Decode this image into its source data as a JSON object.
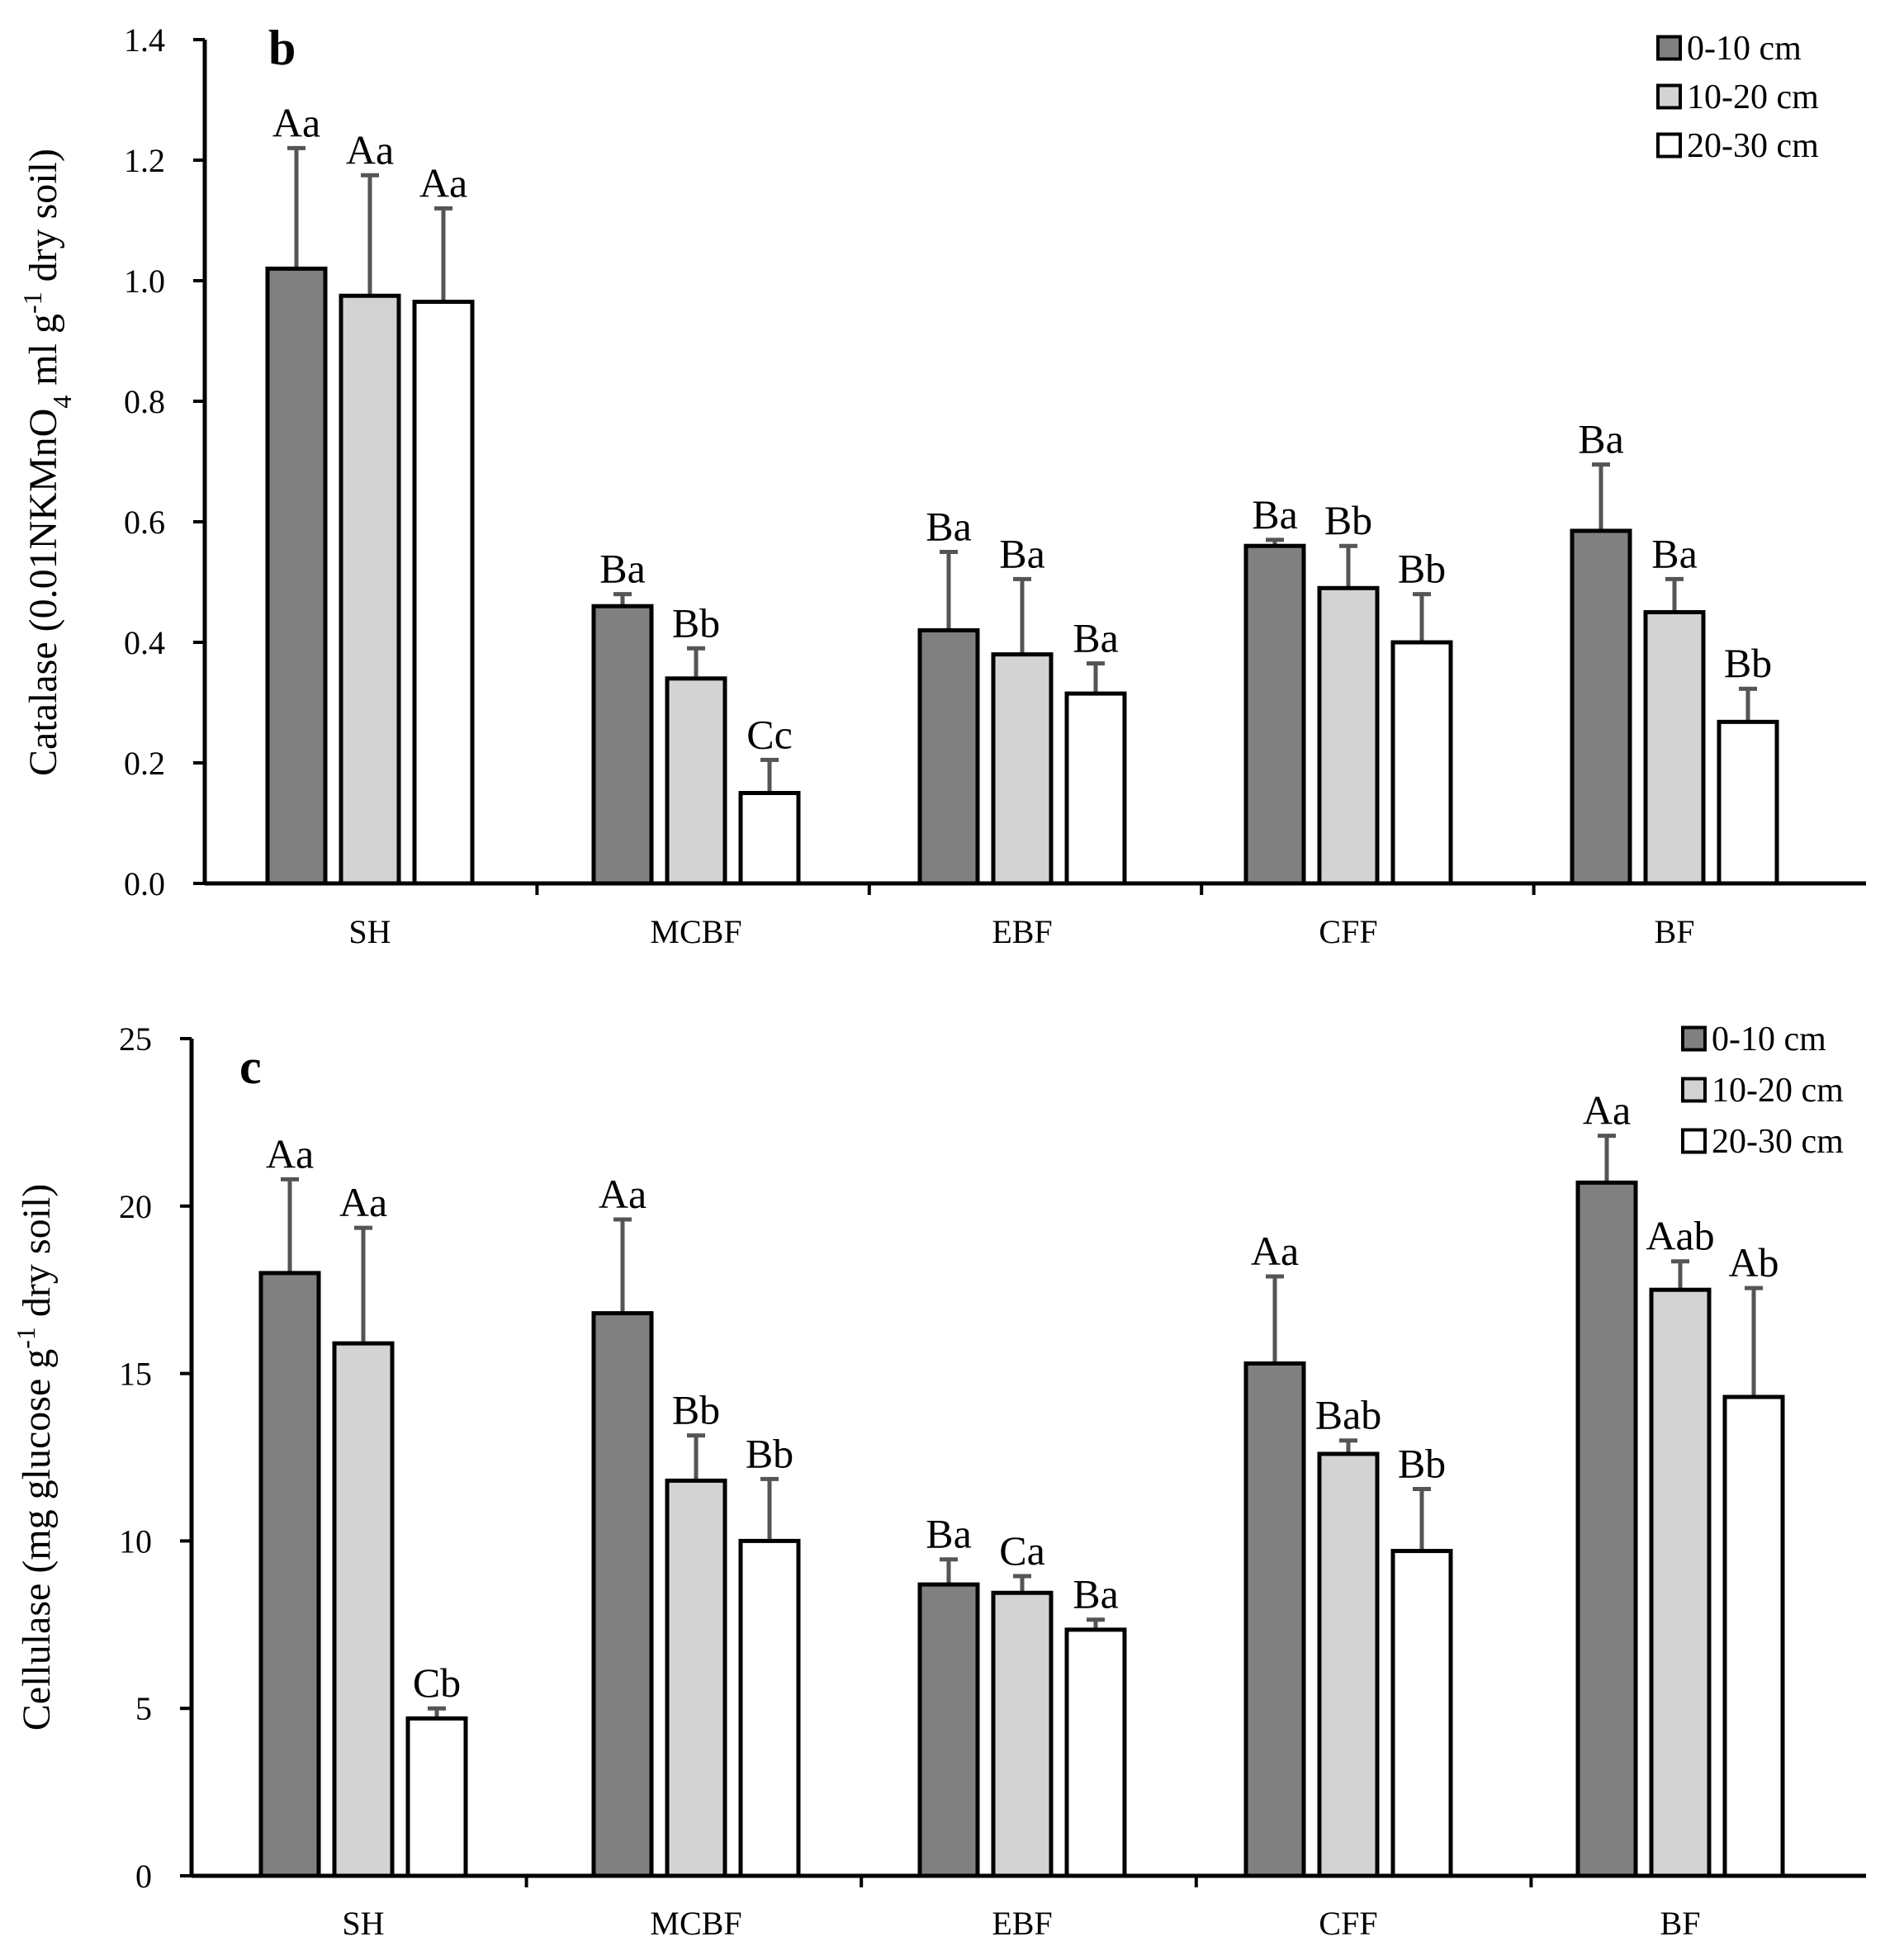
{
  "legend": [
    "0-10 cm",
    "10-20 cm",
    "20-30 cm"
  ],
  "colors": {
    "depth_0_10": "#808080",
    "depth_10_20": "#d3d3d3",
    "depth_20_30": "#ffffff"
  },
  "chart_data": [
    {
      "type": "bar",
      "panel": "b",
      "title": "",
      "ylabel": "Catalase (0.01NKMnO4  ml g-1 dry soil)",
      "ylabel_parts": [
        "Catalase (0.01NKMnO",
        "4",
        "  ml g",
        "-1",
        " dry soil)"
      ],
      "xlabel": "",
      "ylim": [
        0,
        1.4
      ],
      "ytick_values": [
        0,
        0.2,
        0.4,
        0.6,
        0.8,
        1.0,
        1.2,
        1.4
      ],
      "ytick_labels": [
        "0.0",
        "0.2",
        "0.4",
        "0.6",
        "0.8",
        "1.0",
        "1.2",
        "1.4"
      ],
      "categories": [
        "SH",
        "MCBF",
        "EBF",
        "CFF",
        "BF"
      ],
      "legend_position": "top-right",
      "series": [
        {
          "name": "0-10 cm",
          "values": [
            1.02,
            0.46,
            0.42,
            0.56,
            0.585
          ],
          "errors": [
            0.2,
            0.02,
            0.13,
            0.01,
            0.11
          ],
          "labels": [
            "Aa",
            "Ba",
            "Ba",
            "Ba",
            "Ba"
          ]
        },
        {
          "name": "10-20 cm",
          "values": [
            0.975,
            0.34,
            0.38,
            0.49,
            0.45
          ],
          "errors": [
            0.2,
            0.05,
            0.125,
            0.07,
            0.055
          ],
          "labels": [
            "Aa",
            "Bb",
            "Ba",
            "Bb",
            "Ba"
          ]
        },
        {
          "name": "20-30 cm",
          "values": [
            0.965,
            0.15,
            0.315,
            0.4,
            0.268
          ],
          "errors": [
            0.155,
            0.055,
            0.05,
            0.08,
            0.055
          ],
          "labels": [
            "Aa",
            "Cc",
            "Ba",
            "Bb",
            "Bb"
          ]
        }
      ]
    },
    {
      "type": "bar",
      "panel": "c",
      "title": "",
      "ylabel": "Cellulase (mg glucose g-1 dry soil)",
      "ylabel_parts": [
        "Cellulase (mg glucose g",
        "-1",
        " dry soil)"
      ],
      "xlabel": "",
      "ylim": [
        0,
        25
      ],
      "ytick_values": [
        0,
        5,
        10,
        15,
        20,
        25
      ],
      "ytick_labels": [
        "0",
        "5",
        "10",
        "15",
        "20",
        "25"
      ],
      "categories": [
        "SH",
        "MCBF",
        "EBF",
        "CFF",
        "BF"
      ],
      "legend_position": "top-right",
      "series": [
        {
          "name": "0-10 cm",
          "values": [
            18.0,
            16.8,
            8.7,
            15.3,
            20.7
          ],
          "errors": [
            2.8,
            2.8,
            0.75,
            2.6,
            1.4
          ],
          "labels": [
            "Aa",
            "Aa",
            "Ba",
            "Aa",
            "Aa"
          ]
        },
        {
          "name": "10-20 cm",
          "values": [
            15.9,
            11.8,
            8.45,
            12.6,
            17.5
          ],
          "errors": [
            3.45,
            1.35,
            0.5,
            0.4,
            0.85
          ],
          "labels": [
            "Aa",
            "Bb",
            "Ca",
            "Bab",
            "Aab"
          ]
        },
        {
          "name": "20-30 cm",
          "values": [
            4.7,
            10.0,
            7.35,
            9.7,
            14.3
          ],
          "errors": [
            0.3,
            1.85,
            0.3,
            1.85,
            3.25
          ],
          "labels": [
            "Cb",
            "Bb",
            "Ba",
            "Bb",
            "Ab"
          ]
        }
      ]
    }
  ]
}
